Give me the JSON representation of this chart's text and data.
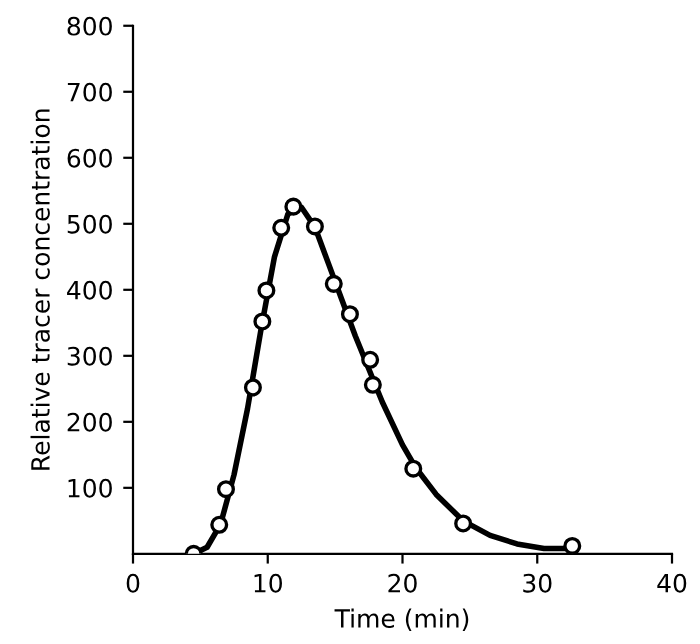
{
  "chart_data": {
    "type": "scatter",
    "xlabel": "Time (min)",
    "ylabel": "Relative tracer concentration",
    "xlim": [
      0,
      40
    ],
    "xticks": [
      0,
      10,
      20,
      30,
      40
    ],
    "ylim": [
      0,
      800
    ],
    "yticks": [
      100,
      200,
      300,
      400,
      500,
      600,
      700,
      800
    ],
    "grid": false,
    "legend": false,
    "series": [
      {
        "type": "line",
        "color": "#000000",
        "marker": "none",
        "line_style": "solid",
        "x": [
          4.5,
          5.5,
          6.5,
          7.5,
          8.5,
          9.5,
          10.5,
          11.5,
          12.5,
          13.5,
          14.5,
          15.5,
          16.5,
          17.5,
          18.5,
          20,
          21,
          22.5,
          24.5,
          26.5,
          28.5,
          30.5,
          32.6
        ],
        "values": [
          0,
          10,
          45,
          120,
          220,
          340,
          450,
          515,
          525,
          495,
          440,
          385,
          330,
          280,
          230,
          165,
          130,
          90,
          50,
          28,
          15,
          8,
          8
        ]
      },
      {
        "color": "#000000",
        "marker": "circle",
        "x": [
          4.5,
          6.4,
          6.9,
          8.9,
          9.6,
          9.9,
          11.0,
          11.9,
          13.5,
          14.9,
          16.1,
          17.6,
          17.8,
          20.8,
          24.5,
          32.6
        ],
        "values": [
          0,
          44,
          98,
          252,
          352,
          399,
          494,
          526,
          496,
          409,
          363,
          294,
          256,
          129,
          46,
          12
        ]
      }
    ]
  }
}
